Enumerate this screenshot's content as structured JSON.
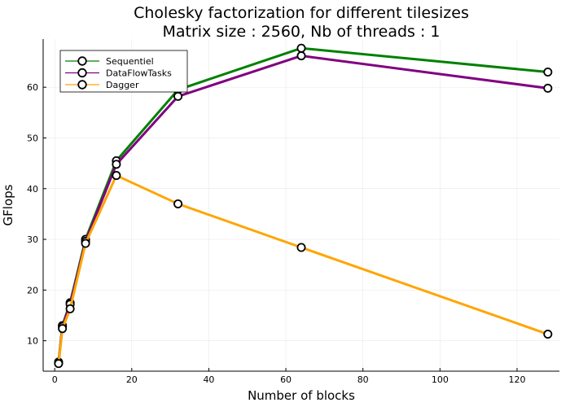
{
  "chart_data": {
    "type": "line",
    "title": "Cholesky factorization for different tilesizes",
    "subtitle": "Matrix size : 2560, Nb of threads : 1",
    "xlabel": "Number of blocks",
    "ylabel": "GFlops",
    "xlim": [
      -3,
      131
    ],
    "ylim": [
      4,
      69.5
    ],
    "xticks": [
      0,
      20,
      40,
      60,
      80,
      100,
      120
    ],
    "yticks": [
      10,
      20,
      30,
      40,
      50,
      60
    ],
    "grid": true,
    "legend_position": "top-left",
    "marker": "circle",
    "marker_fill": "#ffffff",
    "marker_edge": "#000000",
    "x": [
      1,
      2,
      4,
      8,
      16,
      32,
      64,
      128
    ],
    "series": [
      {
        "name": "Sequentiel",
        "color": "#008000",
        "values": [
          5.8,
          13.0,
          17.5,
          30.0,
          45.5,
          59.5,
          67.7,
          63.0
        ]
      },
      {
        "name": "DataFlowTasks",
        "color": "#800080",
        "values": [
          5.6,
          12.8,
          17.2,
          29.6,
          44.8,
          58.2,
          66.2,
          59.8
        ]
      },
      {
        "name": "Dagger",
        "color": "#FFA500",
        "values": [
          5.5,
          12.4,
          16.3,
          29.2,
          42.6,
          37.0,
          28.4,
          11.3
        ]
      }
    ]
  }
}
